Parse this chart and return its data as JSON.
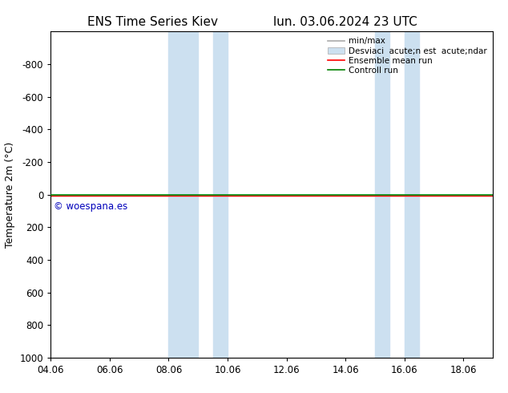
{
  "title_left": "ENS Time Series Kiev",
  "title_right": "lun. 03.06.2024 23 UTC",
  "ylabel": "Temperature 2m (°C)",
  "xlabel": "",
  "xlim": [
    4.06,
    19.06
  ],
  "ylim": [
    1000,
    -1000
  ],
  "yticks": [
    -800,
    -600,
    -400,
    -200,
    0,
    200,
    400,
    600,
    800,
    1000
  ],
  "xticks": [
    4.06,
    6.06,
    8.06,
    10.06,
    12.06,
    14.06,
    16.06,
    18.06
  ],
  "xtick_labels": [
    "04.06",
    "06.06",
    "08.06",
    "10.06",
    "12.06",
    "14.06",
    "16.06",
    "18.06"
  ],
  "shaded_bands": [
    [
      8.06,
      9.06
    ],
    [
      9.56,
      10.06
    ],
    [
      15.06,
      15.56
    ],
    [
      16.06,
      16.56
    ]
  ],
  "band_color": "#cce0f0",
  "green_line_y": 0,
  "green_line_color": "#008000",
  "red_line_color": "#ff0000",
  "watermark": "© woespana.es",
  "watermark_color": "#0000bb",
  "bg_color": "#ffffff",
  "title_fontsize": 11,
  "axis_fontsize": 9,
  "tick_fontsize": 8.5,
  "legend_fontsize": 7.5
}
